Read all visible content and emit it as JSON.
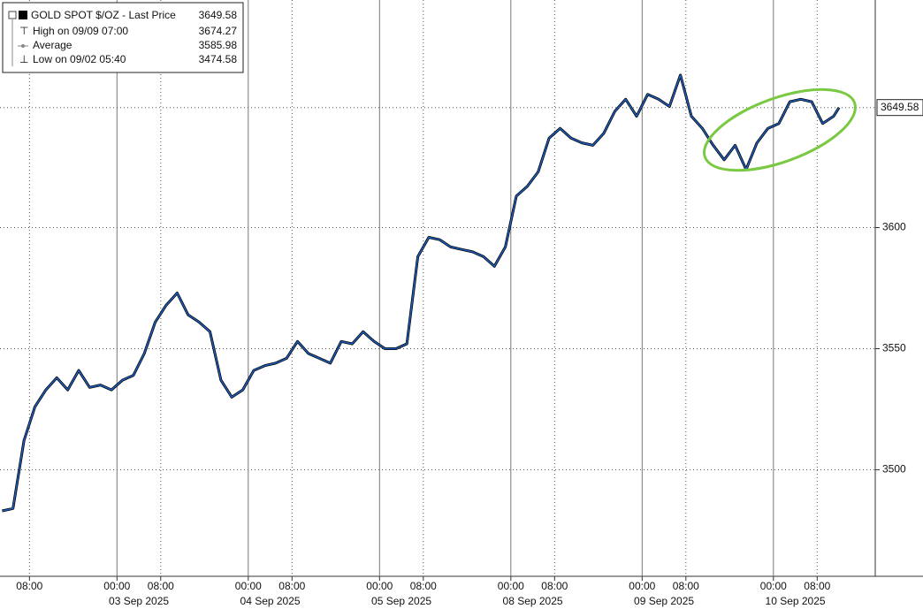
{
  "chart_data": {
    "type": "line",
    "legend": {
      "title": "GOLD SPOT $/OZ - Last Price",
      "last_price": 3649.58,
      "rows": [
        {
          "label": "High on 09/09 07:00",
          "value": 3674.27
        },
        {
          "label": "Average",
          "value": 3585.98
        },
        {
          "label": "Low on 09/02 05:40",
          "value": 3474.58
        }
      ]
    },
    "xlim": [
      "2025-09-02 02:37",
      "2025-09-10 18:37"
    ],
    "ylim": [
      3456,
      3694
    ],
    "yticks": [
      3500,
      3550,
      3600
    ],
    "xticks": [
      {
        "value": "2025-09-02 08:00",
        "label": "08:00"
      },
      {
        "value": "2025-09-03 00:00",
        "label": "00:00"
      },
      {
        "value": "2025-09-03 08:00",
        "label": "08:00"
      },
      {
        "value": "2025-09-04 00:00",
        "label": "00:00"
      },
      {
        "value": "2025-09-04 08:00",
        "label": "08:00"
      },
      {
        "value": "2025-09-05 00:00",
        "label": "00:00"
      },
      {
        "value": "2025-09-05 08:00",
        "label": "08:00"
      },
      {
        "value": "2025-09-08 00:00",
        "label": "00:00"
      },
      {
        "value": "2025-09-08 08:00",
        "label": "08:00"
      },
      {
        "value": "2025-09-09 00:00",
        "label": "00:00"
      },
      {
        "value": "2025-09-09 08:00",
        "label": "08:00"
      },
      {
        "value": "2025-09-10 00:00",
        "label": "00:00"
      },
      {
        "value": "2025-09-10 08:00",
        "label": "08:00"
      }
    ],
    "day_labels": [
      {
        "value": "2025-09-03",
        "label": "03 Sep 2025"
      },
      {
        "value": "2025-09-04",
        "label": "04 Sep 2025"
      },
      {
        "value": "2025-09-05",
        "label": "05 Sep 2025"
      },
      {
        "value": "2025-09-08",
        "label": "08 Sep 2025"
      },
      {
        "value": "2025-09-09",
        "label": "09 Sep 2025"
      },
      {
        "value": "2025-09-10",
        "label": "10 Sep 2025"
      }
    ],
    "grid": true,
    "series": [
      {
        "name": "GOLD SPOT $/OZ - Last Price",
        "color": "#1f5fbf",
        "x": [
          "2025-09-02 03:00",
          "2025-09-02 05:00",
          "2025-09-02 07:00",
          "2025-09-02 09:00",
          "2025-09-02 11:00",
          "2025-09-02 13:00",
          "2025-09-02 15:00",
          "2025-09-02 17:00",
          "2025-09-02 19:00",
          "2025-09-02 21:00",
          "2025-09-02 23:00",
          "2025-09-03 01:00",
          "2025-09-03 03:00",
          "2025-09-03 05:00",
          "2025-09-03 07:00",
          "2025-09-03 09:00",
          "2025-09-03 11:00",
          "2025-09-03 13:00",
          "2025-09-03 15:00",
          "2025-09-03 17:00",
          "2025-09-03 19:00",
          "2025-09-03 21:00",
          "2025-09-03 23:00",
          "2025-09-04 01:00",
          "2025-09-04 03:00",
          "2025-09-04 05:00",
          "2025-09-04 07:00",
          "2025-09-04 09:00",
          "2025-09-04 11:00",
          "2025-09-04 13:00",
          "2025-09-04 15:00",
          "2025-09-04 17:00",
          "2025-09-04 19:00",
          "2025-09-04 21:00",
          "2025-09-04 23:00",
          "2025-09-05 01:00",
          "2025-09-05 03:00",
          "2025-09-05 05:00",
          "2025-09-05 07:00",
          "2025-09-05 09:00",
          "2025-09-05 11:00",
          "2025-09-05 13:00",
          "2025-09-05 15:00",
          "2025-09-05 17:00",
          "2025-09-05 19:00",
          "2025-09-05 21:00",
          "2025-09-05 23:00",
          "2025-09-08 01:00",
          "2025-09-08 03:00",
          "2025-09-08 05:00",
          "2025-09-08 07:00",
          "2025-09-08 09:00",
          "2025-09-08 11:00",
          "2025-09-08 13:00",
          "2025-09-08 15:00",
          "2025-09-08 17:00",
          "2025-09-08 19:00",
          "2025-09-08 21:00",
          "2025-09-08 23:00",
          "2025-09-09 01:00",
          "2025-09-09 03:00",
          "2025-09-09 05:00",
          "2025-09-09 07:00",
          "2025-09-09 09:00",
          "2025-09-09 11:00",
          "2025-09-09 13:00",
          "2025-09-09 15:00",
          "2025-09-09 17:00",
          "2025-09-09 19:00",
          "2025-09-09 21:00",
          "2025-09-09 23:00",
          "2025-09-10 01:00",
          "2025-09-10 03:00",
          "2025-09-10 05:00",
          "2025-09-10 07:00",
          "2025-09-10 09:00",
          "2025-09-10 11:00",
          "2025-09-10 12:00"
        ],
        "values": [
          3483,
          3484,
          3512,
          3526,
          3533,
          3538,
          3533,
          3541,
          3534,
          3535,
          3533,
          3537,
          3539,
          3548,
          3561,
          3568,
          3573,
          3564,
          3561,
          3557,
          3537,
          3530,
          3533,
          3541,
          3543,
          3544,
          3546,
          3553,
          3548,
          3546,
          3544,
          3553,
          3552,
          3557,
          3553,
          3550,
          3550,
          3552,
          3588,
          3596,
          3595,
          3592,
          3591,
          3590,
          3588,
          3584,
          3592,
          3613,
          3617,
          3623,
          3637,
          3641,
          3637,
          3635,
          3634,
          3639,
          3648,
          3653,
          3646,
          3655,
          3653,
          3650,
          3663,
          3646,
          3641,
          3634,
          3628,
          3634,
          3624,
          3635,
          3641,
          3643,
          3652,
          3653,
          3652,
          3643,
          3646,
          3649.58
        ]
      }
    ]
  }
}
